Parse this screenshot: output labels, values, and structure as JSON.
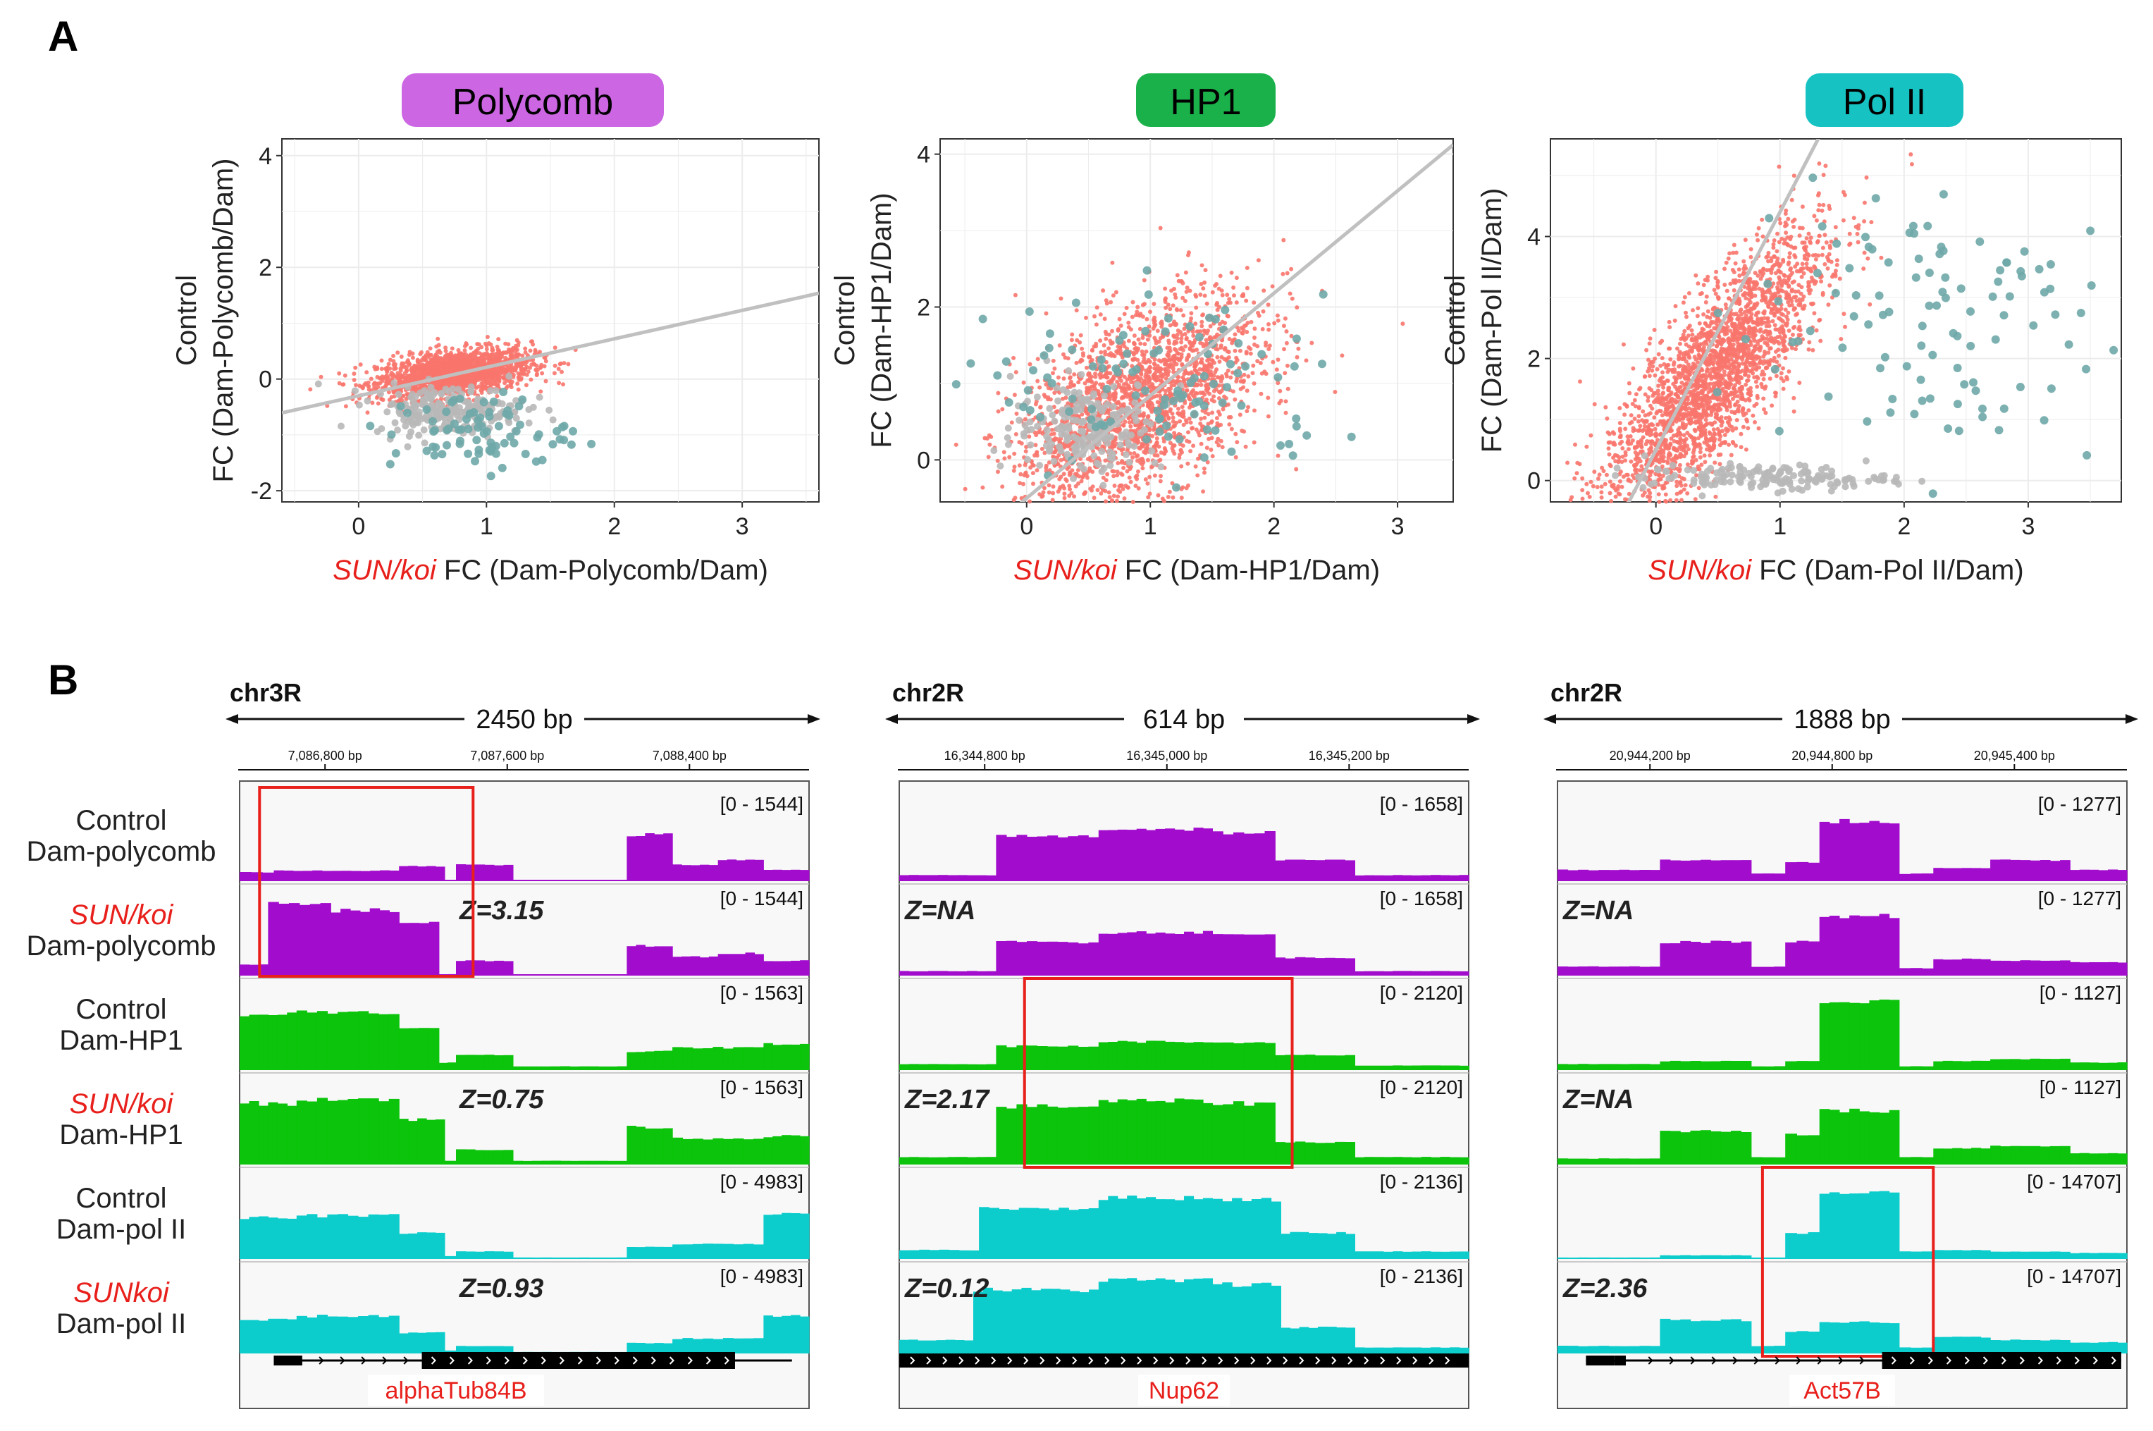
{
  "panel_a": {
    "label": "A",
    "x_suffix": " FC",
    "plots": [
      {
        "title": "Polycomb",
        "title_color": "#cc66e3",
        "x_italic": "SUN/koi",
        "x_rest": "(Dam-Polycomb/Dam)",
        "y_line1": "Control",
        "y_line2": "FC (Dam-Polycomb/Dam)",
        "xticks": [
          "0",
          "1",
          "2",
          "3"
        ],
        "yticks": [
          "-2",
          "0",
          "2",
          "4"
        ]
      },
      {
        "title": "HP1",
        "title_color": "#1bb14a",
        "x_italic": "SUN/koi",
        "x_rest": "(Dam-HP1/Dam)",
        "y_line1": "Control",
        "y_line2": "FC (Dam-HP1/Dam)",
        "xticks": [
          "0",
          "1",
          "2",
          "3"
        ],
        "yticks": [
          "0",
          "2",
          "4"
        ]
      },
      {
        "title": "Pol II",
        "title_color": "#17c2c2",
        "x_italic": "SUN/koi",
        "x_rest": "(Dam-Pol II/Dam)",
        "y_line1": "Control",
        "y_line2": "FC (Dam-Pol II/Dam)",
        "xticks": [
          "0",
          "1",
          "2",
          "3"
        ],
        "yticks": [
          "0",
          "2",
          "4"
        ]
      }
    ]
  },
  "panel_b": {
    "label": "B",
    "row_labels": [
      {
        "line1": "Control",
        "line2": "Dam-polycomb",
        "red": false
      },
      {
        "line1": "SUN/koi",
        "line2": "Dam-polycomb",
        "red": true
      },
      {
        "line1": "Control",
        "line2": "Dam-HP1",
        "red": false
      },
      {
        "line1": "SUN/koi",
        "line2": "Dam-HP1",
        "red": true
      },
      {
        "line1": "Control",
        "line2": "Dam-pol II",
        "red": false
      },
      {
        "line1": "SUNkoi",
        "line2": "Dam-pol II",
        "red": true
      }
    ],
    "tracks": [
      {
        "chrom": "chr3R",
        "span": "2450 bp",
        "ticks": [
          "7,086,800 bp",
          "7,087,600 bp",
          "7,088,400 bp"
        ],
        "ranges": [
          "[0 - 1544]",
          "[0 - 1544]",
          "[0 - 1563]",
          "[0 - 1563]",
          "[0 - 4983]",
          "[0 - 4983]"
        ],
        "z": [
          "Z=3.15",
          "Z=0.75",
          "Z=0.93"
        ],
        "gene": "alphaTub84B"
      },
      {
        "chrom": "chr2R",
        "span": "614 bp",
        "ticks": [
          "16,344,800 bp",
          "16,345,000 bp",
          "16,345,200 bp"
        ],
        "ranges": [
          "[0 - 1658]",
          "[0 - 1658]",
          "[0 - 2120]",
          "[0 - 2120]",
          "[0 - 2136]",
          "[0 - 2136]"
        ],
        "z": [
          "Z=NA",
          "Z=2.17",
          "Z=0.12"
        ],
        "gene": "Nup62"
      },
      {
        "chrom": "chr2R",
        "span": "1888 bp",
        "ticks": [
          "20,944,200 bp",
          "20,944,800 bp",
          "20,945,400 bp"
        ],
        "ranges": [
          "[0 - 1277]",
          "[0 - 1277]",
          "[0 - 1127]",
          "[0 - 1127]",
          "[0 - 14707]",
          "[0 - 14707]"
        ],
        "z": [
          "Z=NA",
          "Z=NA",
          "Z=2.36"
        ],
        "gene": "Act57B"
      }
    ]
  },
  "colors": {
    "polycomb": "#a20ccd",
    "hp1": "#0bc40b",
    "polii": "#0ccccc",
    "points_main": "#f8766d",
    "points_sig": "#6fa8a8",
    "points_grey": "#b8b8b8",
    "fit_line": "#c0c0c0",
    "highlight": "#e8201c",
    "red_text": "#e8201c"
  },
  "chart_data": [
    {
      "type": "scatter",
      "title": "Polycomb",
      "xlabel": "SUN/koi FC (Dam-Polycomb/Dam)",
      "ylabel": "Control FC (Dam-Polycomb/Dam)",
      "xlim": [
        -0.6,
        3.6
      ],
      "ylim": [
        -2.2,
        4.3
      ],
      "xticks": [
        0,
        1,
        2,
        3
      ],
      "yticks": [
        -2,
        0,
        2,
        4
      ],
      "fit_line": {
        "slope": 0.51,
        "intercept": -0.3
      },
      "series": [
        {
          "name": "all",
          "color": "#f8766d",
          "cx": 0.75,
          "cy": 0.12,
          "sx": 0.3,
          "sy": 0.2,
          "n": 1800
        },
        {
          "name": "grey",
          "color": "#b8b8b8",
          "cx": 0.7,
          "cy": -0.55,
          "sx": 0.3,
          "sy": 0.22,
          "n": 220
        },
        {
          "name": "significant",
          "color": "#6fa8a8",
          "cx": 0.95,
          "cy": -0.95,
          "sx": 0.35,
          "sy": 0.35,
          "n": 80
        }
      ]
    },
    {
      "type": "scatter",
      "title": "HP1",
      "xlabel": "SUN/koi FC (Dam-HP1/Dam)",
      "ylabel": "Control FC (Dam-HP1/Dam)",
      "xlim": [
        -0.7,
        3.45
      ],
      "ylim": [
        -0.55,
        4.2
      ],
      "xticks": [
        0,
        1,
        2,
        3
      ],
      "yticks": [
        0,
        2,
        4
      ],
      "fit_line": {
        "slope": 1.34,
        "intercept": -0.5
      },
      "series": [
        {
          "name": "all",
          "color": "#f8766d",
          "cx": 0.9,
          "cy": 0.8,
          "sx": 0.5,
          "sy": 0.6,
          "n": 2200
        },
        {
          "name": "grey",
          "color": "#b8b8b8",
          "cx": 0.5,
          "cy": 0.45,
          "sx": 0.3,
          "sy": 0.3,
          "n": 200
        },
        {
          "name": "significant",
          "color": "#6fa8a8",
          "cx": 1.1,
          "cy": 0.9,
          "sx": 0.7,
          "sy": 0.6,
          "n": 110
        }
      ]
    },
    {
      "type": "scatter",
      "title": "Pol II",
      "xlabel": "SUN/koi FC (Dam-Pol II/Dam)",
      "ylabel": "Control FC (Dam-Pol II/Dam)",
      "xlim": [
        -0.85,
        3.75
      ],
      "ylim": [
        -0.35,
        5.6
      ],
      "xticks": [
        0,
        1,
        2,
        3
      ],
      "yticks": [
        0,
        2,
        4
      ],
      "fit_line": {
        "slope": 3.9,
        "intercept": 0.5
      },
      "series": [
        {
          "name": "all",
          "color": "#f8766d",
          "cx": 0.45,
          "cy": 0.95,
          "sx": 0.45,
          "sy": 0.7,
          "n": 2600
        },
        {
          "name": "grey",
          "color": "#b8b8b8",
          "cx": 0.9,
          "cy": 0.05,
          "sx": 0.5,
          "sy": 0.1,
          "n": 160
        },
        {
          "name": "significant",
          "color": "#6fa8a8",
          "cx": 2.1,
          "cy": 2.6,
          "sx": 0.8,
          "sy": 1.3,
          "n": 110
        }
      ]
    }
  ]
}
